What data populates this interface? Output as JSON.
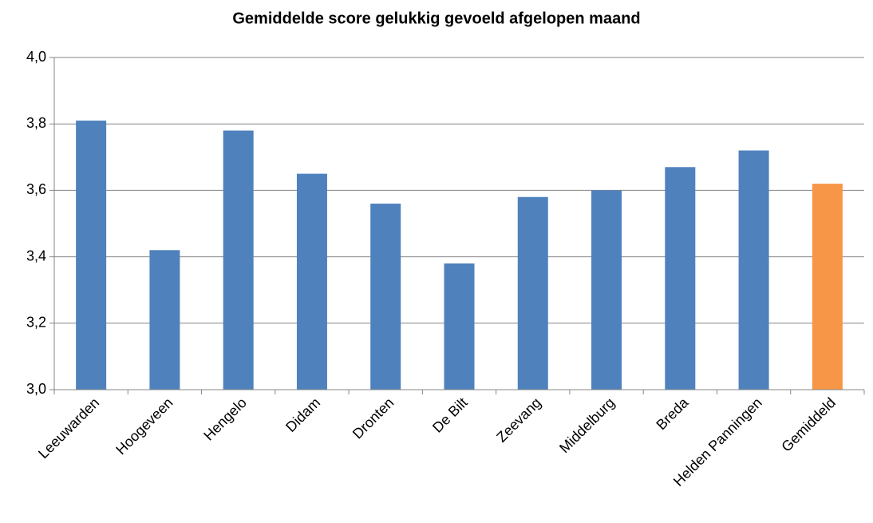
{
  "chart_data": {
    "type": "bar",
    "title": "Gemiddelde score gelukkig gevoeld afgelopen maand",
    "categories": [
      "Leeuwarden",
      "Hoogeveen",
      "Hengelo",
      "Didam",
      "Dronten",
      "De Bilt",
      "Zeevang",
      "Middelburg",
      "Breda",
      "Helden Panningen",
      "Gemiddeld"
    ],
    "values": [
      3.81,
      3.42,
      3.78,
      3.65,
      3.56,
      3.38,
      3.58,
      3.6,
      3.67,
      3.72,
      3.62
    ],
    "colors": [
      "#4f81bd",
      "#4f81bd",
      "#4f81bd",
      "#4f81bd",
      "#4f81bd",
      "#4f81bd",
      "#4f81bd",
      "#4f81bd",
      "#4f81bd",
      "#4f81bd",
      "#f79646"
    ],
    "ylim": [
      3,
      4
    ],
    "yticks": [
      {
        "value": 3,
        "label": "3,0"
      },
      {
        "value": 3.2,
        "label": "3,2"
      },
      {
        "value": 3.4,
        "label": "3,4"
      },
      {
        "value": 3.6,
        "label": "3,6"
      },
      {
        "value": 3.8,
        "label": "3,8"
      },
      {
        "value": 4,
        "label": "4,0"
      }
    ],
    "grid": true
  }
}
